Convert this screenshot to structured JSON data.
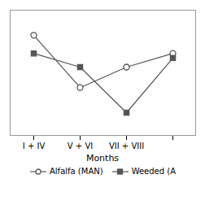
{
  "chart_data": {
    "type": "line",
    "categories": [
      "I + IV",
      "V + VI",
      "VII + VIII",
      null
    ],
    "series": [
      {
        "name": "Alfalfa (MAN)",
        "color": "#555555",
        "marker": "circle",
        "values": [
          0.88,
          0.42,
          0.6,
          0.72
        ]
      },
      {
        "name": "Weeded (A",
        "color": "#555555",
        "marker": "square",
        "values": [
          0.72,
          0.6,
          0.2,
          0.68
        ]
      }
    ],
    "xlabel": "Months",
    "ylim": [
      0,
      1.1
    ],
    "yticks": [],
    "tick_labels": "x",
    "grid": false,
    "legend": "bottom"
  }
}
